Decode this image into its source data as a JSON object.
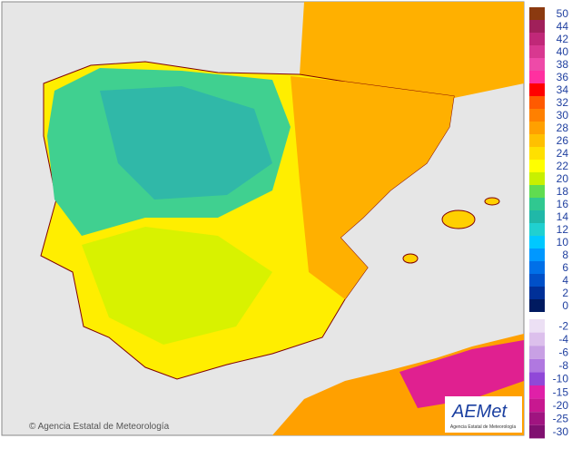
{
  "map": {
    "credit": "© Agencia Estatal de Meteorología",
    "logo": {
      "name": "AEMet",
      "subtitle": "Agencia Estatal de Meteorología"
    }
  },
  "legend": [
    {
      "label": "50",
      "color": "#8b3a10"
    },
    {
      "label": "44",
      "color": "#a0205a"
    },
    {
      "label": "42",
      "color": "#c02878"
    },
    {
      "label": "40",
      "color": "#d83890"
    },
    {
      "label": "38",
      "color": "#ee4aa8"
    },
    {
      "label": "36",
      "color": "#ff30a0"
    },
    {
      "label": "34",
      "color": "#ff0000"
    },
    {
      "label": "32",
      "color": "#ff5a00"
    },
    {
      "label": "30",
      "color": "#ff8000"
    },
    {
      "label": "28",
      "color": "#ffa000"
    },
    {
      "label": "26",
      "color": "#ffc000"
    },
    {
      "label": "24",
      "color": "#ffe000"
    },
    {
      "label": "22",
      "color": "#ffff00"
    },
    {
      "label": "20",
      "color": "#c8f000"
    },
    {
      "label": "18",
      "color": "#60dc50"
    },
    {
      "label": "16",
      "color": "#30c890"
    },
    {
      "label": "14",
      "color": "#20b8a8"
    },
    {
      "label": "12",
      "color": "#20d0d0"
    },
    {
      "label": "10",
      "color": "#00c8ff"
    },
    {
      "label": "8",
      "color": "#0098ff"
    },
    {
      "label": "6",
      "color": "#0070e8"
    },
    {
      "label": "4",
      "color": "#0050c8"
    },
    {
      "label": "2",
      "color": "#003098"
    },
    {
      "label": "0",
      "color": "#001a60"
    },
    {
      "label": "-2",
      "color": "#ece0f4"
    },
    {
      "label": "-4",
      "color": "#dcc0ec"
    },
    {
      "label": "-6",
      "color": "#c8a0e4"
    },
    {
      "label": "-8",
      "color": "#b078e0"
    },
    {
      "label": "-10",
      "color": "#9048d8"
    },
    {
      "label": "-15",
      "color": "#e020a8"
    },
    {
      "label": "-20",
      "color": "#c81890"
    },
    {
      "label": "-25",
      "color": "#a01480"
    },
    {
      "label": "-30",
      "color": "#801070"
    }
  ]
}
